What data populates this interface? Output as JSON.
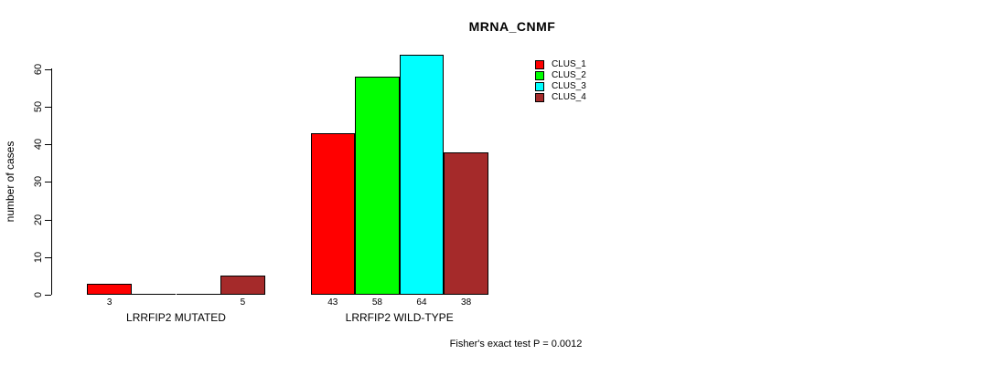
{
  "chart_data": {
    "type": "bar",
    "title": "MRNA_CNMF",
    "ylabel": "number of cases",
    "xlabel": "",
    "ylim": [
      0,
      60
    ],
    "yticks": [
      0,
      10,
      20,
      30,
      40,
      50,
      60
    ],
    "grid": false,
    "legend_position": "top-right-inside",
    "categories": [
      "CLUS_1",
      "CLUS_2",
      "CLUS_3",
      "CLUS_4"
    ],
    "series_colors": [
      "#FF0000",
      "#00FF00",
      "#00FFFF",
      "#A52A2A"
    ],
    "groups": [
      {
        "label": "LRRFIP2 MUTATED",
        "values": [
          3,
          0,
          0,
          5
        ],
        "bar_labels": [
          "3",
          "",
          "",
          "5"
        ]
      },
      {
        "label": "LRRFIP2 WILD-TYPE",
        "values": [
          43,
          58,
          64,
          38
        ],
        "bar_labels": [
          "43",
          "58",
          "64",
          "38"
        ]
      }
    ],
    "legend": [
      {
        "label": "CLUS_1",
        "color": "#FF0000"
      },
      {
        "label": "CLUS_2",
        "color": "#00FF00"
      },
      {
        "label": "CLUS_3",
        "color": "#00FFFF"
      },
      {
        "label": "CLUS_4",
        "color": "#A52A2A"
      }
    ],
    "annotation": "Fisher's exact test P = 0.0012"
  }
}
